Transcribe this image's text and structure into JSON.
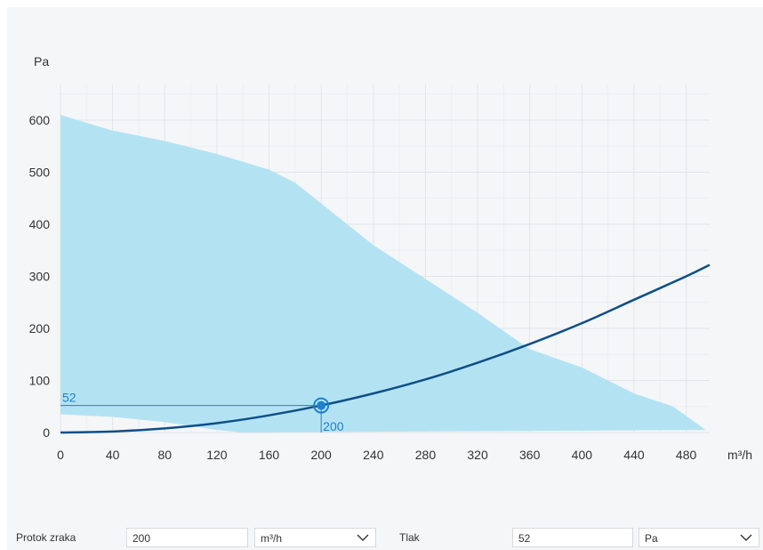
{
  "chart_data": {
    "type": "line",
    "ylabel": "Pa",
    "xlabel": "m³/h",
    "xlim": [
      0,
      500
    ],
    "ylim": [
      0,
      640
    ],
    "x_ticks": [
      0,
      40,
      80,
      120,
      160,
      200,
      240,
      280,
      320,
      360,
      400,
      440,
      480
    ],
    "y_ticks": [
      0,
      100,
      200,
      300,
      400,
      500,
      600
    ],
    "grid": true,
    "operating_range": {
      "upper": [
        [
          0,
          610
        ],
        [
          40,
          580
        ],
        [
          80,
          560
        ],
        [
          120,
          535
        ],
        [
          160,
          505
        ],
        [
          180,
          480
        ],
        [
          200,
          440
        ],
        [
          240,
          360
        ],
        [
          280,
          295
        ],
        [
          320,
          230
        ],
        [
          360,
          160
        ],
        [
          400,
          125
        ],
        [
          440,
          75
        ],
        [
          470,
          50
        ],
        [
          495,
          5
        ]
      ],
      "lower": [
        [
          0,
          35
        ],
        [
          40,
          30
        ],
        [
          80,
          20
        ],
        [
          120,
          5
        ],
        [
          140,
          0
        ]
      ]
    },
    "series": [
      {
        "values": [
          [
            0,
            0
          ],
          [
            40,
            2
          ],
          [
            80,
            8
          ],
          [
            120,
            18
          ],
          [
            160,
            33
          ],
          [
            200,
            52
          ],
          [
            240,
            75
          ],
          [
            280,
            102
          ],
          [
            320,
            134
          ],
          [
            360,
            170
          ],
          [
            400,
            210
          ],
          [
            440,
            255
          ],
          [
            480,
            300
          ],
          [
            498,
            322
          ]
        ]
      }
    ],
    "operating_point": {
      "x": 200,
      "y": 52,
      "x_label": "200",
      "y_label": "52"
    },
    "colors": {
      "range_fill": "#b3e3f3",
      "curve": "#0e4f87",
      "marker": "#1f7fd0",
      "grid": "#e2e4e8",
      "background": "#f5f6f8"
    }
  },
  "form": {
    "flow_label": "Protok zraka",
    "flow_value": "200",
    "flow_unit": "m³/h",
    "pressure_label": "Tlak",
    "pressure_value": "52",
    "pressure_unit": "Pa",
    "dropdown_icon": "chevron-down-icon"
  }
}
